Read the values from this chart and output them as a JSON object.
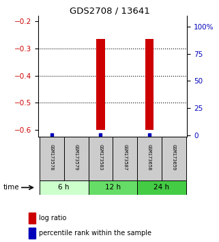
{
  "title": "GDS2708 / 13641",
  "samples": [
    "GSM173578",
    "GSM173579",
    "GSM173583",
    "GSM173587",
    "GSM173658",
    "GSM173659"
  ],
  "log_ratio": [
    null,
    null,
    -0.265,
    null,
    -0.265,
    null
  ],
  "log_ratio_bottom": -0.6,
  "percentile_rank": [
    0.5,
    null,
    0.5,
    null,
    0.5,
    null
  ],
  "ylim_left": [
    -0.625,
    -0.18
  ],
  "ylim_right": [
    -1.25,
    110
  ],
  "yticks_left": [
    -0.6,
    -0.5,
    -0.4,
    -0.3,
    -0.2
  ],
  "yticks_right": [
    0,
    25,
    50,
    75,
    100
  ],
  "ytick_labels_right": [
    "0",
    "25",
    "50",
    "75",
    "100%"
  ],
  "left_axis_color": "#cc0000",
  "right_axis_color": "#0000bb",
  "bar_color": "#cc0000",
  "percentile_color": "#0000bb",
  "time_groups": [
    {
      "label": "6 h",
      "start": 0,
      "end": 2,
      "color": "#ccffcc"
    },
    {
      "label": "12 h",
      "start": 2,
      "end": 4,
      "color": "#66dd66"
    },
    {
      "label": "24 h",
      "start": 4,
      "end": 6,
      "color": "#44cc44"
    }
  ],
  "grid_yticks": [
    -0.3,
    -0.4,
    -0.5
  ],
  "bar_width": 0.35,
  "xlim": [
    -0.55,
    5.55
  ]
}
